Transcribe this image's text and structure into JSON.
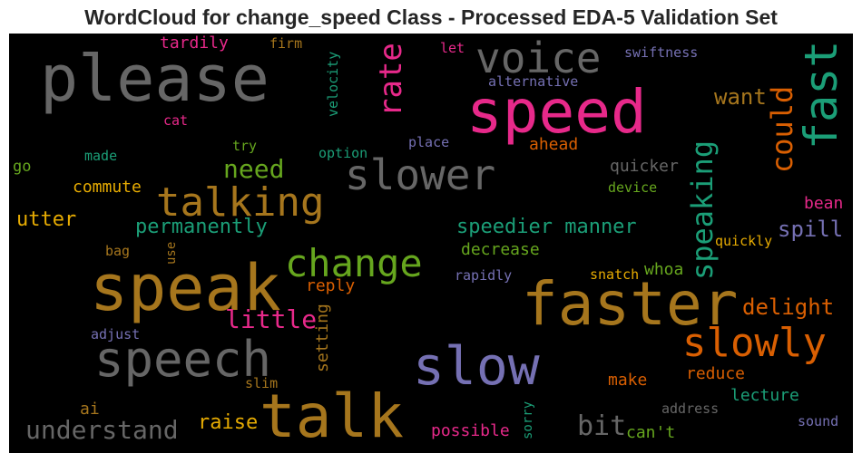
{
  "title": "WordCloud for change_speed Class - Processed EDA-5 Validation Set",
  "colors": {
    "background": "#000000",
    "pink": "#e7298a",
    "gray": "#666666",
    "teal": "#1b9e77",
    "green": "#66a61e",
    "orange": "#d95f02",
    "gold": "#e6ab02",
    "brown": "#a6761d",
    "purple": "#7570b3"
  },
  "words": [
    {
      "text": "please",
      "color": "#666666"
    },
    {
      "text": "voice",
      "color": "#666666"
    },
    {
      "text": "speed",
      "color": "#e7298a"
    },
    {
      "text": "fast",
      "color": "#1b9e77"
    },
    {
      "text": "rate",
      "color": "#e7298a"
    },
    {
      "text": "tardily",
      "color": "#e7298a"
    },
    {
      "text": "firm",
      "color": "#a6761d"
    },
    {
      "text": "let",
      "color": "#e7298a"
    },
    {
      "text": "swiftness",
      "color": "#7570b3"
    },
    {
      "text": "velocity",
      "color": "#1b9e77"
    },
    {
      "text": "alternative",
      "color": "#7570b3"
    },
    {
      "text": "cat",
      "color": "#e7298a"
    },
    {
      "text": "want",
      "color": "#a6761d"
    },
    {
      "text": "could",
      "color": "#d95f02"
    },
    {
      "text": "place",
      "color": "#7570b3"
    },
    {
      "text": "ahead",
      "color": "#d95f02"
    },
    {
      "text": "try",
      "color": "#66a61e"
    },
    {
      "text": "option",
      "color": "#1b9e77"
    },
    {
      "text": "made",
      "color": "#1b9e77"
    },
    {
      "text": "go",
      "color": "#66a61e"
    },
    {
      "text": "need",
      "color": "#66a61e"
    },
    {
      "text": "slower",
      "color": "#666666"
    },
    {
      "text": "quicker",
      "color": "#666666"
    },
    {
      "text": "speaking",
      "color": "#1b9e77"
    },
    {
      "text": "commute",
      "color": "#e6ab02"
    },
    {
      "text": "talking",
      "color": "#a6761d"
    },
    {
      "text": "device",
      "color": "#66a61e"
    },
    {
      "text": "bean",
      "color": "#e7298a"
    },
    {
      "text": "utter",
      "color": "#e6ab02"
    },
    {
      "text": "permanently",
      "color": "#1b9e77"
    },
    {
      "text": "speedier manner",
      "color": "#1b9e77"
    },
    {
      "text": "spill",
      "color": "#7570b3"
    },
    {
      "text": "change",
      "color": "#66a61e"
    },
    {
      "text": "bag",
      "color": "#a6761d"
    },
    {
      "text": "use",
      "color": "#a6761d"
    },
    {
      "text": "decrease",
      "color": "#66a61e"
    },
    {
      "text": "quickly",
      "color": "#e6ab02"
    },
    {
      "text": "speak",
      "color": "#a6761d"
    },
    {
      "text": "rapidly",
      "color": "#7570b3"
    },
    {
      "text": "snatch",
      "color": "#e6ab02"
    },
    {
      "text": "whoa",
      "color": "#66a61e"
    },
    {
      "text": "faster",
      "color": "#a6761d"
    },
    {
      "text": "reply",
      "color": "#d95f02"
    },
    {
      "text": "delight",
      "color": "#d95f02"
    },
    {
      "text": "little",
      "color": "#e7298a"
    },
    {
      "text": "setting",
      "color": "#a6761d"
    },
    {
      "text": "slowly",
      "color": "#d95f02"
    },
    {
      "text": "adjust",
      "color": "#7570b3"
    },
    {
      "text": "speech",
      "color": "#666666"
    },
    {
      "text": "slow",
      "color": "#7570b3"
    },
    {
      "text": "reduce",
      "color": "#d95f02"
    },
    {
      "text": "slim",
      "color": "#a6761d"
    },
    {
      "text": "make",
      "color": "#d95f02"
    },
    {
      "text": "lecture",
      "color": "#1b9e77"
    },
    {
      "text": "ai",
      "color": "#a6761d"
    },
    {
      "text": "talk",
      "color": "#a6761d"
    },
    {
      "text": "address",
      "color": "#666666"
    },
    {
      "text": "raise",
      "color": "#e6ab02"
    },
    {
      "text": "sorry",
      "color": "#1b9e77"
    },
    {
      "text": "understand",
      "color": "#666666"
    },
    {
      "text": "bit",
      "color": "#666666"
    },
    {
      "text": "sound",
      "color": "#7570b3"
    },
    {
      "text": "possible",
      "color": "#e7298a"
    },
    {
      "text": "can't",
      "color": "#66a61e"
    }
  ]
}
